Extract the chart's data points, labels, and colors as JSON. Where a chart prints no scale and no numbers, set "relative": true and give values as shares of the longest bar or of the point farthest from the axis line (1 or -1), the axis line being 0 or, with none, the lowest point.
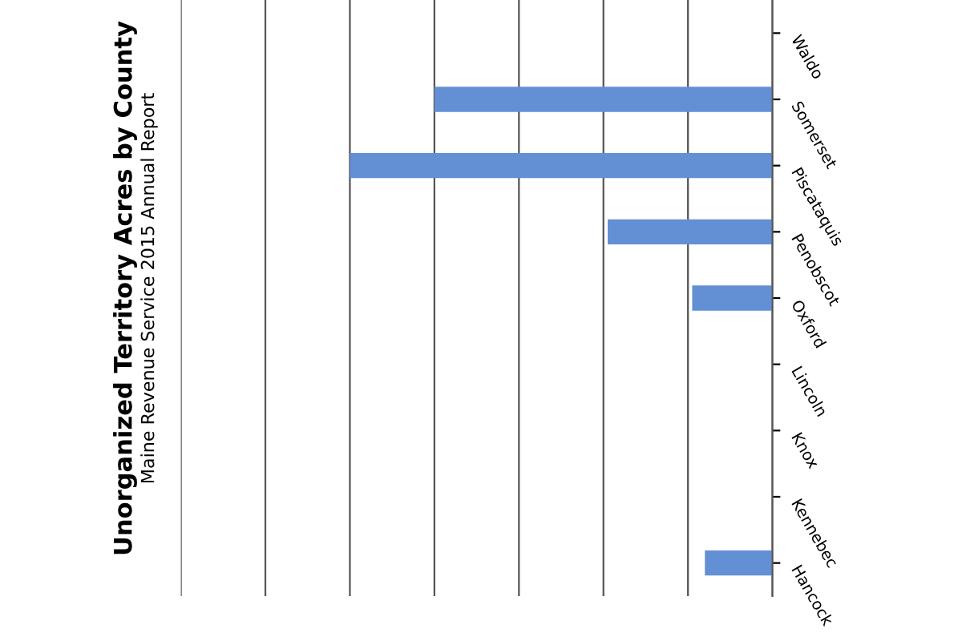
{
  "chart_data": {
    "type": "bar",
    "title": "Unorganized Territory Acres by County",
    "subtitle": "Maine Revenue Service 2015 Annual Report",
    "orientation": "horizontal",
    "relative": true,
    "grid": "x",
    "categories": [
      "Waldo",
      "Somerset",
      "Piscataquis",
      "Penobscot",
      "Oxford",
      "Lincoln",
      "Knox",
      "Kennebec",
      "Hancock"
    ],
    "series": [
      {
        "color": "#6390d4",
        "values": [
          0,
          0.8,
          1,
          0.39,
          0.19,
          0,
          0,
          0,
          0.16
        ]
      }
    ]
  }
}
